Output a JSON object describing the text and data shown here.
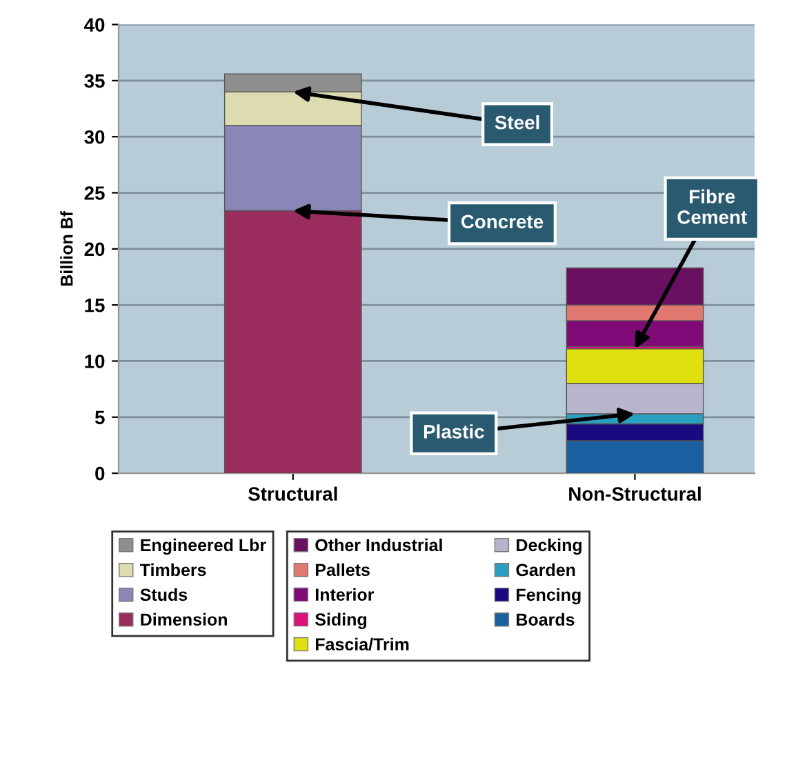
{
  "chart_data": {
    "type": "bar",
    "stacked": true,
    "ylabel": "Billion Bf",
    "categories": [
      "Structural",
      "Non-Structural"
    ],
    "ylim": [
      0,
      40
    ],
    "yticks": [
      0,
      5,
      10,
      15,
      20,
      25,
      30,
      35,
      40
    ],
    "grid": "y",
    "legend": "bottom",
    "series": [
      {
        "name": "Dimension",
        "color": "#9b2c5e",
        "values": [
          23.4,
          null
        ]
      },
      {
        "name": "Studs",
        "color": "#8a86b8",
        "values": [
          7.6,
          null
        ]
      },
      {
        "name": "Timbers",
        "color": "#dcdcb0",
        "values": [
          3.0,
          null
        ]
      },
      {
        "name": "Engineered Lbr",
        "color": "#8e8e8e",
        "values": [
          1.6,
          null
        ]
      },
      {
        "name": "Boards",
        "color": "#1a60a0",
        "values": [
          null,
          2.9
        ]
      },
      {
        "name": "Fencing",
        "color": "#1a0a80",
        "values": [
          null,
          1.5
        ]
      },
      {
        "name": "Garden",
        "color": "#2aa0c0",
        "values": [
          null,
          0.9
        ]
      },
      {
        "name": "Decking",
        "color": "#b8b4cc",
        "values": [
          null,
          2.7
        ]
      },
      {
        "name": "Fascia/Trim",
        "color": "#e0e010",
        "values": [
          null,
          3.1
        ]
      },
      {
        "name": "Siding",
        "color": "#e0107a",
        "values": [
          null,
          0.2
        ]
      },
      {
        "name": "Interior",
        "color": "#800a78",
        "values": [
          null,
          2.3
        ]
      },
      {
        "name": "Pallets",
        "color": "#e07870",
        "values": [
          null,
          1.4
        ]
      },
      {
        "name": "Other Industrial",
        "color": "#6a1060",
        "values": [
          null,
          3.3
        ]
      }
    ],
    "annotations": [
      {
        "text": "Steel",
        "x": "Structural",
        "y": 34.0
      },
      {
        "text": "Concrete",
        "x": "Structural",
        "y": 23.4
      },
      {
        "text": "Plastic",
        "x": "Non-Structural",
        "y": 5.3
      },
      {
        "text": "Fibre\nCement",
        "x": "Non-Structural",
        "y": 11.1
      }
    ]
  }
}
